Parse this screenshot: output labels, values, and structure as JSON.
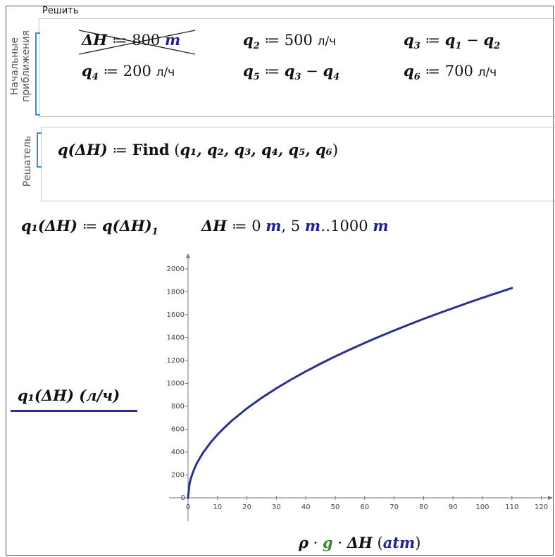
{
  "solve_block": {
    "label": "Решить"
  },
  "initial_guesses": {
    "label": "Начальные приближения",
    "label_line1": "Начальные",
    "label_line2": "приближения",
    "dh": {
      "lhs": "ΔH",
      "value": "800",
      "unit": "m",
      "disabled": true
    },
    "q2": {
      "value": "500",
      "unit": "л/ч"
    },
    "q3": {
      "rhs_a": "q",
      "rhs_a_sub": "1",
      "rhs_b": "q",
      "rhs_b_sub": "2"
    },
    "q4": {
      "value": "200",
      "unit": "л/ч"
    },
    "q5": {
      "rhs_a": "q",
      "rhs_a_sub": "3",
      "rhs_b": "q",
      "rhs_b_sub": "4"
    },
    "q6": {
      "value": "700",
      "unit": "л/ч"
    }
  },
  "solver": {
    "label": "Решатель",
    "func": "q(ΔH)",
    "keyword": "Find",
    "args": "q₁, q₂, q₃, q₄, q₅, q₆"
  },
  "definitions": {
    "q1_def_lhs": "q₁(ΔH)",
    "q1_def_rhs": "q(ΔH)",
    "q1_def_index": "1",
    "range_lhs": "ΔH",
    "range_start": "0",
    "range_step": "5",
    "range_end": "1000",
    "range_unit": "m"
  },
  "chart_data": {
    "type": "line",
    "title": "",
    "xlabel": "ρ · g · ΔH  (atm)",
    "ylabel": "q₁(ΔH)  (л/ч)",
    "x_ticks": [
      10,
      20,
      30,
      40,
      50,
      60,
      70,
      80,
      90,
      100,
      110,
      120
    ],
    "y_ticks": [
      200,
      400,
      600,
      800,
      1000,
      1200,
      1400,
      1600,
      1800,
      2000
    ],
    "xlim": [
      0,
      122
    ],
    "ylim": [
      0,
      2100
    ],
    "legend_position": "left",
    "series": [
      {
        "name": "q₁(ΔH)  (л/ч)",
        "color": "#2b2f8f",
        "x": [
          0,
          0.5,
          1,
          2,
          3,
          5,
          7.5,
          10,
          12.5,
          15,
          20,
          25,
          30,
          35,
          40,
          45,
          50,
          55,
          60,
          65,
          70,
          75,
          80,
          85,
          90,
          95,
          100,
          105,
          110
        ],
        "y": [
          0,
          124,
          175,
          247,
          303,
          391,
          479,
          553,
          618,
          677,
          782,
          874,
          957,
          1034,
          1105,
          1172,
          1236,
          1296,
          1354,
          1409,
          1462,
          1514,
          1564,
          1612,
          1658,
          1704,
          1748,
          1791,
          1833
        ]
      }
    ]
  }
}
